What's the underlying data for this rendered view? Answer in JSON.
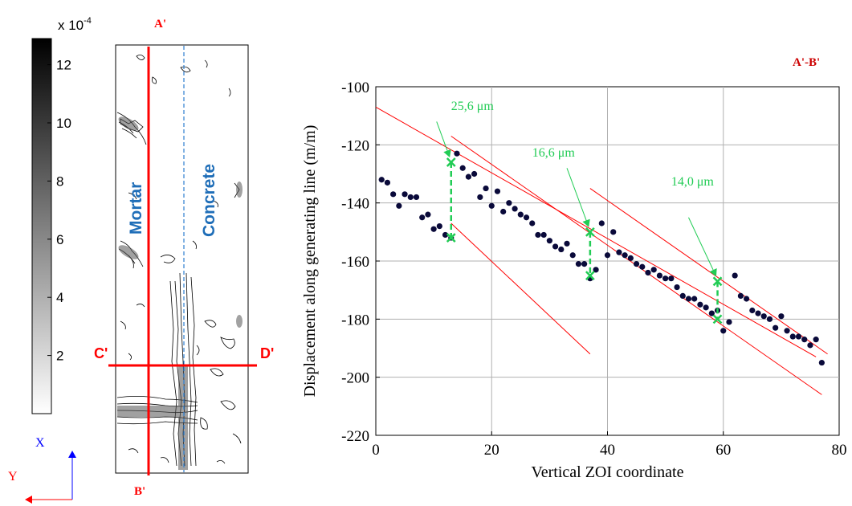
{
  "left_panel": {
    "colorbar": {
      "multiplier": "x 10",
      "exponent": "-4",
      "ticks": [
        2,
        4,
        6,
        8,
        10,
        12
      ],
      "range": [
        0,
        12.9
      ],
      "gradient_colors": [
        "#000000",
        "#ffffff"
      ]
    },
    "map": {
      "labels": {
        "top": "A'",
        "bottom": "B'",
        "left": "C'",
        "right": "D'",
        "material_left": "Mortar",
        "material_right": "Concrete"
      },
      "colors": {
        "section_line": "#ff0000",
        "material_text": "#1f6eb8",
        "interface_line": "#2f7fd0"
      }
    },
    "axes_indicator": {
      "x_label": "X",
      "y_label": "Y",
      "x_color": "#0000ff",
      "y_color": "#ff0000"
    }
  },
  "chart_data": {
    "type": "scatter",
    "title": "A'-B'",
    "xlabel": "Vertical ZOI coordinate",
    "ylabel": "Displacement along generating line (m/m)",
    "xlim": [
      0,
      80
    ],
    "ylim": [
      -220,
      -100
    ],
    "xticks": [
      0,
      20,
      40,
      60,
      80
    ],
    "yticks": [
      -220,
      -200,
      -180,
      -160,
      -140,
      -120,
      -100
    ],
    "grid": true,
    "series": [
      {
        "type": "scatter",
        "color": "#0a0a3a",
        "points": [
          [
            1,
            -132
          ],
          [
            2,
            -133
          ],
          [
            3,
            -137
          ],
          [
            4,
            -141
          ],
          [
            5,
            -137
          ],
          [
            6,
            -138
          ],
          [
            7,
            -138
          ],
          [
            8,
            -145
          ],
          [
            9,
            -144
          ],
          [
            10,
            -149
          ],
          [
            11,
            -148
          ],
          [
            12,
            -151
          ],
          [
            13,
            -152
          ],
          [
            14,
            -123
          ],
          [
            15,
            -128
          ],
          [
            16,
            -131
          ],
          [
            17,
            -130
          ],
          [
            18,
            -138
          ],
          [
            19,
            -135
          ],
          [
            20,
            -141
          ],
          [
            21,
            -136
          ],
          [
            22,
            -143
          ],
          [
            23,
            -140
          ],
          [
            24,
            -142
          ],
          [
            25,
            -144
          ],
          [
            26,
            -145
          ],
          [
            27,
            -147
          ],
          [
            28,
            -151
          ],
          [
            29,
            -151
          ],
          [
            30,
            -153
          ],
          [
            31,
            -155
          ],
          [
            32,
            -156
          ],
          [
            33,
            -154
          ],
          [
            34,
            -158
          ],
          [
            35,
            -161
          ],
          [
            36,
            -161
          ],
          [
            37,
            -166
          ],
          [
            38,
            -163
          ],
          [
            39,
            -147
          ],
          [
            40,
            -158
          ],
          [
            41,
            -150
          ],
          [
            42,
            -157
          ],
          [
            43,
            -158
          ],
          [
            44,
            -159
          ],
          [
            45,
            -161
          ],
          [
            46,
            -162
          ],
          [
            47,
            -164
          ],
          [
            48,
            -163
          ],
          [
            49,
            -165
          ],
          [
            50,
            -166
          ],
          [
            51,
            -166
          ],
          [
            52,
            -169
          ],
          [
            53,
            -172
          ],
          [
            54,
            -173
          ],
          [
            55,
            -173
          ],
          [
            56,
            -175
          ],
          [
            57,
            -176
          ],
          [
            58,
            -178
          ],
          [
            59,
            -177
          ],
          [
            60,
            -184
          ],
          [
            61,
            -181
          ],
          [
            62,
            -165
          ],
          [
            63,
            -172
          ],
          [
            64,
            -173
          ],
          [
            65,
            -177
          ],
          [
            66,
            -178
          ],
          [
            67,
            -179
          ],
          [
            68,
            -180
          ],
          [
            69,
            -183
          ],
          [
            70,
            -179
          ],
          [
            71,
            -184
          ],
          [
            72,
            -186
          ],
          [
            73,
            -186
          ],
          [
            74,
            -187
          ],
          [
            75,
            -189
          ],
          [
            76,
            -187
          ],
          [
            77,
            -195
          ]
        ]
      },
      {
        "type": "line",
        "color": "#ff0000",
        "points": [
          [
            0,
            -107
          ],
          [
            76,
            -193
          ]
        ]
      },
      {
        "type": "line",
        "color": "#ff0000",
        "points": [
          [
            13,
            -147
          ],
          [
            37,
            -192
          ]
        ]
      },
      {
        "type": "line",
        "color": "#ff0000",
        "points": [
          [
            13,
            -117
          ],
          [
            77,
            -206
          ]
        ]
      },
      {
        "type": "line",
        "color": "#ff0000",
        "points": [
          [
            37,
            -135
          ],
          [
            78,
            -192
          ]
        ]
      }
    ],
    "annotations": [
      {
        "text": "25,6 μm",
        "x": 13,
        "y_top": -126,
        "y_bottom": -152,
        "label_at": [
          13,
          -108
        ],
        "arrow_from": [
          10.5,
          -112
        ]
      },
      {
        "text": "16,6 μm",
        "x": 37,
        "y_top": -150,
        "y_bottom": -165,
        "label_at": [
          27,
          -124
        ],
        "arrow_from": [
          33,
          -128
        ]
      },
      {
        "text": "14,0 μm",
        "x": 59,
        "y_top": -167,
        "y_bottom": -180,
        "label_at": [
          51,
          -134
        ],
        "arrow_from": [
          54,
          -145
        ]
      }
    ],
    "colors": {
      "points": "#0a0a3a",
      "fit_lines": "#ff0000",
      "annotations": "#22cc55",
      "title": "#cc0000"
    }
  }
}
